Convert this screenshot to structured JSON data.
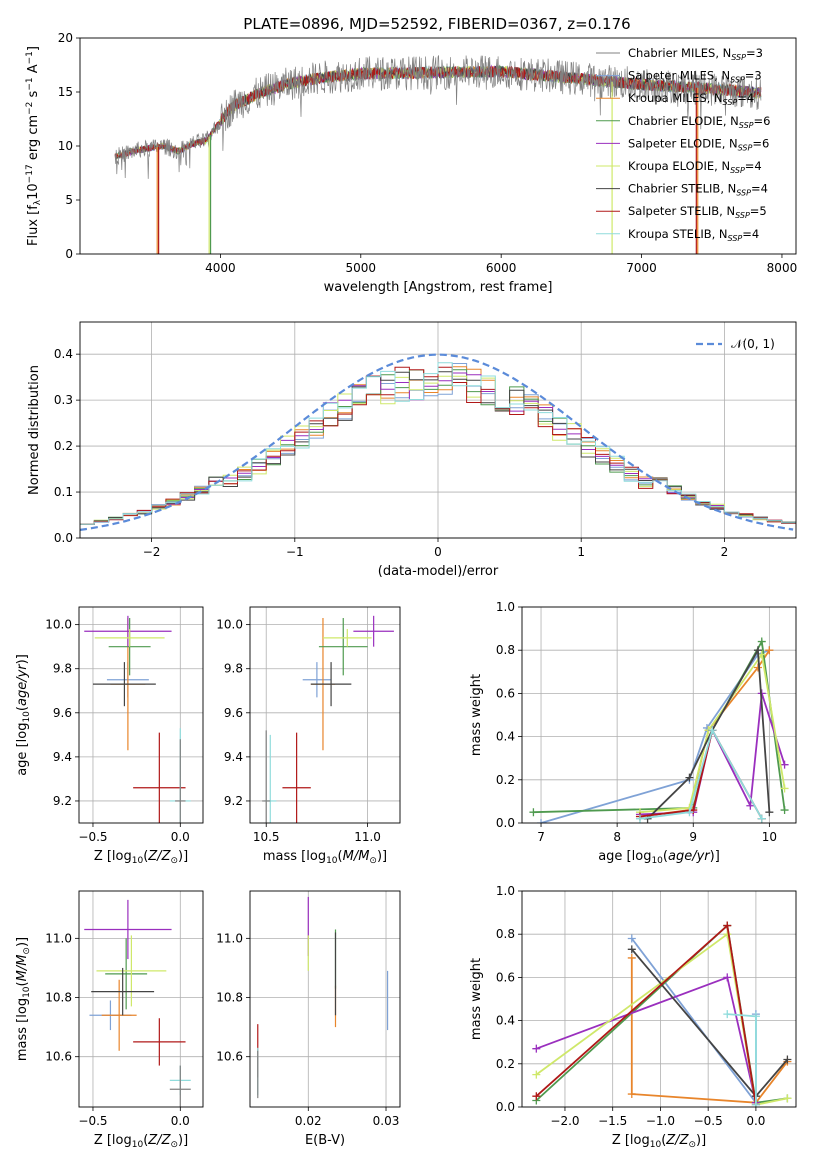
{
  "title": "PLATE=0896, MJD=52592, FIBERID=0367, z=0.176",
  "colors": [
    "#808080",
    "#7fa2d6",
    "#e8852b",
    "#4f9a4f",
    "#9a2fbe",
    "#cfe86a",
    "#444444",
    "#b01818",
    "#8fdcdc"
  ],
  "legend": [
    {
      "name": "Chabrier MILES",
      "nssp": "3"
    },
    {
      "name": "Salpeter MILES",
      "nssp": "3"
    },
    {
      "name": "Kroupa MILES",
      "nssp": "4"
    },
    {
      "name": "Chabrier ELODIE",
      "nssp": "6"
    },
    {
      "name": "Salpeter ELODIE",
      "nssp": "6"
    },
    {
      "name": "Kroupa ELODIE",
      "nssp": "4"
    },
    {
      "name": "Chabrier STELIB",
      "nssp": "4"
    },
    {
      "name": "Salpeter STELIB",
      "nssp": "5"
    },
    {
      "name": "Kroupa STELIB",
      "nssp": "4"
    }
  ],
  "chart_data": [
    {
      "id": "spectrum",
      "type": "line",
      "xlabel": "wavelength [Angstrom, rest frame]",
      "ylabel": "Flux [f_λ10^-17 erg cm^-2 s^-1 A^-1]",
      "xlim": [
        3000,
        8100
      ],
      "ylim": [
        0,
        20
      ],
      "xticks": [
        4000,
        5000,
        6000,
        7000,
        8000
      ],
      "yticks": [
        0,
        5,
        10,
        15,
        20
      ],
      "grid": false,
      "legend_position": "right",
      "data_range": [
        3250,
        7850
      ],
      "continuum": [
        [
          3250,
          9.0
        ],
        [
          3400,
          9.6
        ],
        [
          3600,
          10.0
        ],
        [
          3700,
          9.5
        ],
        [
          3800,
          10.2
        ],
        [
          3900,
          10.5
        ],
        [
          4000,
          12.3
        ],
        [
          4100,
          13.8
        ],
        [
          4300,
          15.0
        ],
        [
          4500,
          15.8
        ],
        [
          4700,
          16.3
        ],
        [
          5000,
          16.7
        ],
        [
          5500,
          16.8
        ],
        [
          6000,
          16.9
        ],
        [
          6500,
          16.3
        ],
        [
          7000,
          15.7
        ],
        [
          7500,
          15.3
        ],
        [
          7850,
          14.9
        ]
      ]
    },
    {
      "id": "residuals",
      "type": "line",
      "xlabel": "(data-model)/error",
      "ylabel": "Normed distribution",
      "xlim": [
        -2.5,
        2.5
      ],
      "ylim": [
        0,
        0.47
      ],
      "xticks": [
        -2,
        -1,
        0,
        1,
        2
      ],
      "yticks": [
        0.0,
        0.1,
        0.2,
        0.3,
        0.4
      ],
      "grid": true,
      "legend_label": "𝒩(0, 1)",
      "legend_position": "top-right"
    },
    {
      "id": "z-age",
      "type": "scatter",
      "xlabel": "Z [log10(Z/Z⊙)]",
      "ylabel": "age  [log10(age/yr)]",
      "xlim": [
        -0.58,
        0.13
      ],
      "ylim": [
        9.1,
        10.08
      ],
      "xticks": [
        -0.5,
        0.0
      ],
      "yticks": [
        9.2,
        9.4,
        9.6,
        9.8,
        10.0
      ],
      "grid": true,
      "points": [
        {
          "c": 1,
          "x": -0.3,
          "y": 9.75,
          "xerr": 0.12,
          "yerr": 0.08
        },
        {
          "c": 2,
          "x": -0.3,
          "y": 9.73,
          "xerr": 0.1,
          "yerr": 0.3
        },
        {
          "c": 3,
          "x": -0.29,
          "y": 9.9,
          "xerr": 0.12,
          "yerr": 0.13
        },
        {
          "c": 4,
          "x": -0.3,
          "y": 9.97,
          "xerr": 0.25,
          "yerr": 0.07
        },
        {
          "c": 5,
          "x": -0.29,
          "y": 9.94,
          "xerr": 0.2,
          "yerr": 0.04
        },
        {
          "c": 6,
          "x": -0.32,
          "y": 9.73,
          "xerr": 0.18,
          "yerr": 0.1
        },
        {
          "c": 7,
          "x": -0.12,
          "y": 9.26,
          "xerr": 0.15,
          "yerr": 0.25
        },
        {
          "c": 8,
          "x": 0.0,
          "y": 9.2,
          "xerr": 0.06,
          "yerr": 0.33
        },
        {
          "c": 0,
          "x": 0.0,
          "y": 9.2,
          "xerr": 0.03,
          "yerr": 0.28
        }
      ]
    },
    {
      "id": "mass-age",
      "type": "scatter",
      "xlabel": "mass [log10(M/M⊙)]",
      "ylabel": "",
      "xlim": [
        10.42,
        11.16
      ],
      "ylim": [
        9.1,
        10.08
      ],
      "xticks": [
        10.5,
        11.0
      ],
      "yticks": [
        9.2,
        9.4,
        9.6,
        9.8,
        10.0
      ],
      "grid": true,
      "points": [
        {
          "c": 1,
          "x": 10.75,
          "y": 9.75,
          "xerr": 0.07,
          "yerr": 0.08
        },
        {
          "c": 2,
          "x": 10.78,
          "y": 9.73,
          "xerr": 0.06,
          "yerr": 0.3
        },
        {
          "c": 3,
          "x": 10.88,
          "y": 9.9,
          "xerr": 0.12,
          "yerr": 0.13
        },
        {
          "c": 4,
          "x": 11.03,
          "y": 9.97,
          "xerr": 0.1,
          "yerr": 0.07
        },
        {
          "c": 5,
          "x": 10.9,
          "y": 9.94,
          "xerr": 0.12,
          "yerr": 0.04
        },
        {
          "c": 6,
          "x": 10.82,
          "y": 9.73,
          "xerr": 0.1,
          "yerr": 0.1
        },
        {
          "c": 7,
          "x": 10.65,
          "y": 9.26,
          "xerr": 0.07,
          "yerr": 0.25
        },
        {
          "c": 8,
          "x": 10.52,
          "y": 9.2,
          "xerr": 0.03,
          "yerr": 0.3
        },
        {
          "c": 0,
          "x": 10.5,
          "y": 9.2,
          "xerr": 0.02,
          "yerr": 0.32
        }
      ]
    },
    {
      "id": "age-weight",
      "type": "line",
      "xlabel": "age  [log10(age/yr)]",
      "ylabel": "mass weight",
      "xlim": [
        6.75,
        10.35
      ],
      "ylim": [
        0,
        1
      ],
      "xticks": [
        7,
        8,
        9,
        10
      ],
      "yticks": [
        0.0,
        0.2,
        0.4,
        0.6,
        0.8,
        1.0
      ],
      "grid": true,
      "series": [
        {
          "c": 1,
          "x": [
            7.0,
            8.95,
            9.18,
            9.85,
            10.0
          ],
          "y": [
            0.0,
            0.2,
            0.44,
            0.78,
            0.8
          ]
        },
        {
          "c": 2,
          "x": [
            8.3,
            8.95,
            9.2,
            9.85,
            10.0
          ],
          "y": [
            0.03,
            0.06,
            0.43,
            0.72,
            0.8
          ]
        },
        {
          "c": 3,
          "x": [
            6.9,
            9.0,
            9.25,
            9.9,
            10.2
          ],
          "y": [
            0.05,
            0.07,
            0.43,
            0.84,
            0.06
          ]
        },
        {
          "c": 4,
          "x": [
            8.3,
            9.0,
            9.25,
            9.75,
            9.9,
            10.2
          ],
          "y": [
            0.04,
            0.05,
            0.43,
            0.08,
            0.6,
            0.27
          ]
        },
        {
          "c": 5,
          "x": [
            8.3,
            8.95,
            9.2,
            9.9,
            10.2
          ],
          "y": [
            0.05,
            0.07,
            0.43,
            0.78,
            0.16
          ]
        },
        {
          "c": 6,
          "x": [
            8.4,
            8.95,
            9.25,
            9.85,
            10.0
          ],
          "y": [
            0.02,
            0.21,
            0.43,
            0.8,
            0.05
          ]
        },
        {
          "c": 7,
          "x": [
            8.3,
            9.0,
            9.25,
            9.9
          ],
          "y": [
            0.03,
            0.06,
            0.43,
            0.02
          ]
        },
        {
          "c": 8,
          "x": [
            8.3,
            8.95,
            9.25,
            9.9
          ],
          "y": [
            0.02,
            0.05,
            0.43,
            0.02
          ]
        }
      ]
    },
    {
      "id": "z-mass",
      "type": "scatter",
      "xlabel": "Z [log10(Z/Z⊙)]",
      "ylabel": "mass [log10(M/M⊙)]",
      "xlim": [
        -0.58,
        0.13
      ],
      "ylim": [
        10.43,
        11.16
      ],
      "xticks": [
        -0.5,
        0.0
      ],
      "yticks": [
        10.6,
        10.8,
        11.0
      ],
      "grid": true,
      "points": [
        {
          "c": 1,
          "x": -0.4,
          "y": 10.74,
          "xerr": 0.12,
          "yerr": 0.05
        },
        {
          "c": 2,
          "x": -0.35,
          "y": 10.74,
          "xerr": 0.1,
          "yerr": 0.12
        },
        {
          "c": 3,
          "x": -0.31,
          "y": 10.88,
          "xerr": 0.12,
          "yerr": 0.12
        },
        {
          "c": 4,
          "x": -0.3,
          "y": 11.03,
          "xerr": 0.25,
          "yerr": 0.1
        },
        {
          "c": 5,
          "x": -0.28,
          "y": 10.89,
          "xerr": 0.2,
          "yerr": 0.12
        },
        {
          "c": 6,
          "x": -0.33,
          "y": 10.82,
          "xerr": 0.18,
          "yerr": 0.08
        },
        {
          "c": 7,
          "x": -0.12,
          "y": 10.65,
          "xerr": 0.15,
          "yerr": 0.08
        },
        {
          "c": 8,
          "x": 0.0,
          "y": 10.52,
          "xerr": 0.06,
          "yerr": 0.05
        },
        {
          "c": 0,
          "x": 0.0,
          "y": 10.49,
          "xerr": 0.06,
          "yerr": 0.08
        }
      ]
    },
    {
      "id": "ebv-mass",
      "type": "scatter",
      "xlabel": "E(B-V)",
      "ylabel": "",
      "xlim": [
        0.0125,
        0.0318
      ],
      "ylim": [
        10.43,
        11.16
      ],
      "xticks": [
        0.02,
        0.03
      ],
      "yticks": [
        10.6,
        10.8,
        11.0
      ],
      "grid": true,
      "points": [
        {
          "c": 1,
          "x": 0.0302,
          "y": 10.79,
          "xerr": 0,
          "yerr": 0.1
        },
        {
          "c": 2,
          "x": 0.0235,
          "y": 10.77,
          "xerr": 0,
          "yerr": 0.07
        },
        {
          "c": 3,
          "x": 0.0235,
          "y": 10.93,
          "xerr": 0,
          "yerr": 0.1
        },
        {
          "c": 4,
          "x": 0.02,
          "y": 11.04,
          "xerr": 0,
          "yerr": 0.1
        },
        {
          "c": 5,
          "x": 0.02,
          "y": 10.95,
          "xerr": 0,
          "yerr": 0.06
        },
        {
          "c": 6,
          "x": 0.0235,
          "y": 10.88,
          "xerr": 0,
          "yerr": 0.14
        },
        {
          "c": 7,
          "x": 0.0135,
          "y": 10.62,
          "xerr": 0,
          "yerr": 0.09
        },
        {
          "c": 8,
          "x": 0.0135,
          "y": 10.55,
          "xerr": 0,
          "yerr": 0.08
        },
        {
          "c": 0,
          "x": 0.0135,
          "y": 10.54,
          "xerr": 0,
          "yerr": 0.08
        }
      ]
    },
    {
      "id": "z-weight",
      "type": "line",
      "xlabel": "Z [log10(Z/Z⊙)]",
      "ylabel": "mass weight",
      "xlim": [
        -2.45,
        0.42
      ],
      "ylim": [
        0,
        1
      ],
      "xticks": [
        -2.0,
        -1.5,
        -1.0,
        -0.5,
        0.0
      ],
      "yticks": [
        0.0,
        0.2,
        0.4,
        0.6,
        0.8,
        1.0
      ],
      "grid": true,
      "series": [
        {
          "c": 1,
          "x": [
            -1.3,
            0.0,
            0.0
          ],
          "y": [
            0.78,
            0.02,
            0.43
          ]
        },
        {
          "c": 2,
          "x": [
            -1.3,
            -1.3,
            0.0,
            0.33
          ],
          "y": [
            0.69,
            0.06,
            0.02,
            0.21
          ]
        },
        {
          "c": 3,
          "x": [
            -2.3,
            -0.3,
            0.0,
            0.33
          ],
          "y": [
            0.03,
            0.84,
            0.02,
            0.04
          ]
        },
        {
          "c": 4,
          "x": [
            -2.3,
            -0.3,
            0.0
          ],
          "y": [
            0.27,
            0.6,
            0.02
          ]
        },
        {
          "c": 5,
          "x": [
            -2.3,
            -0.3,
            0.0,
            0.33
          ],
          "y": [
            0.15,
            0.8,
            0.01,
            0.04
          ]
        },
        {
          "c": 6,
          "x": [
            -1.3,
            0.0,
            0.33
          ],
          "y": [
            0.73,
            0.05,
            0.22
          ]
        },
        {
          "c": 7,
          "x": [
            -2.3,
            -0.3,
            0.0
          ],
          "y": [
            0.05,
            0.84,
            0.01
          ]
        },
        {
          "c": 8,
          "x": [
            -0.3,
            0.0,
            0.0
          ],
          "y": [
            0.43,
            0.42,
            0.01
          ]
        }
      ]
    }
  ]
}
